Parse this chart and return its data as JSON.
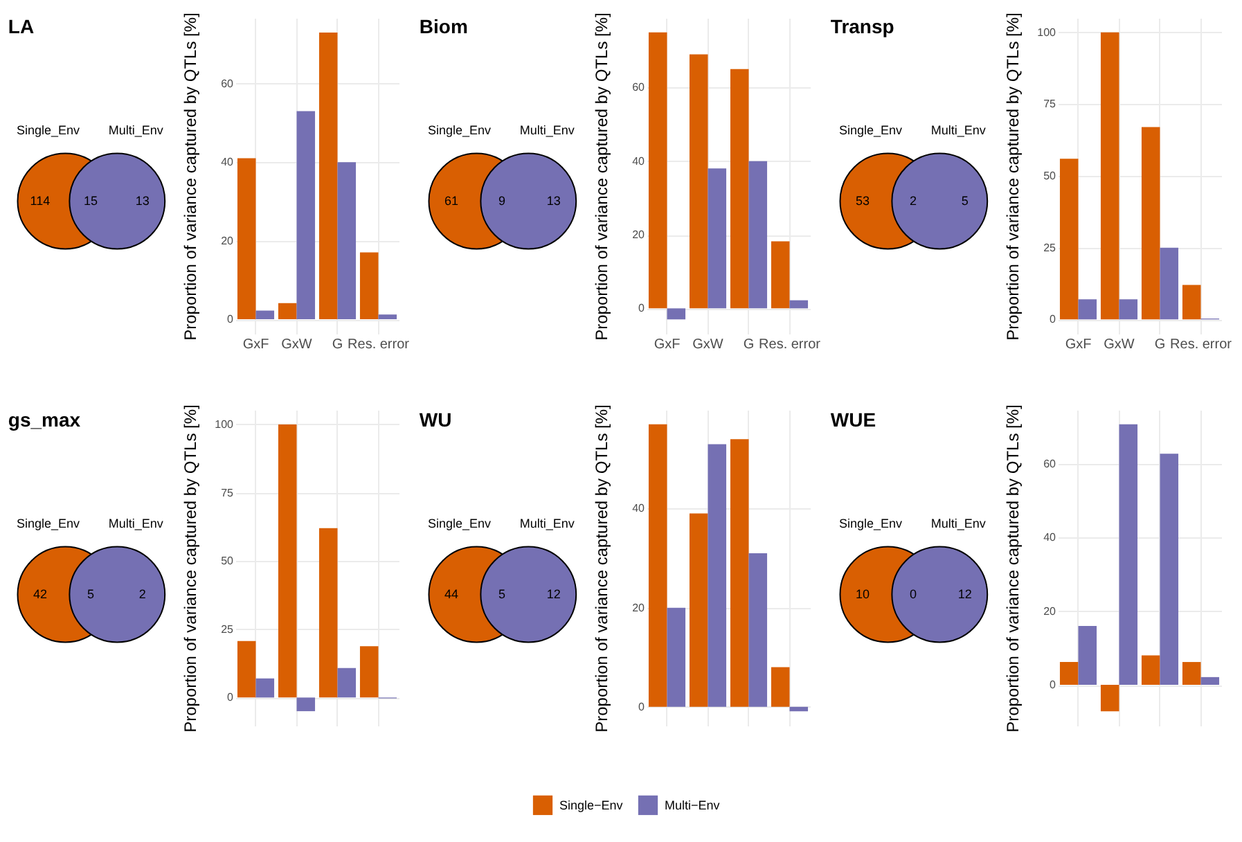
{
  "chart_data": [
    {
      "type": "other",
      "title": "LA",
      "categories": [
        "Single_Env",
        "Multi_Env"
      ],
      "colors": [
        "#d95f02",
        "#7570b3"
      ],
      "annotations": [
        "114",
        "15",
        "13"
      ]
    },
    {
      "type": "bar",
      "categories": [
        "GxF",
        "GxW",
        "G",
        "Res. error"
      ],
      "ylabel": "Proportion of variance captured by QTLs [%]",
      "ylim": [
        -3.7,
        76.7
      ],
      "yticks": [
        0,
        20,
        40,
        60
      ],
      "grid": true,
      "legend": "bottom",
      "series": [
        {
          "name": "Single−Env",
          "color": "#d95f02",
          "values": [
            41,
            4.1,
            73,
            17
          ]
        },
        {
          "name": "Multi−Env",
          "color": "#7570b3",
          "values": [
            2.2,
            53,
            40,
            1.2
          ]
        }
      ]
    },
    {
      "type": "other",
      "title": "Biom",
      "categories": [
        "Single_Env",
        "Multi_Env"
      ],
      "colors": [
        "#d95f02",
        "#7570b3"
      ],
      "annotations": [
        "61",
        "9",
        "13"
      ]
    },
    {
      "type": "bar",
      "categories": [
        "GxF",
        "GxW",
        "G",
        "Res. error"
      ],
      "ylabel": "Proportion of variance captured by QTLs [%]",
      "ylim": [
        -6.9,
        78.9
      ],
      "yticks": [
        0,
        20,
        40,
        60
      ],
      "grid": true,
      "legend": "bottom",
      "series": [
        {
          "name": "Single−Env",
          "color": "#d95f02",
          "values": [
            75,
            69,
            65,
            18.2
          ]
        },
        {
          "name": "Multi−Env",
          "color": "#7570b3",
          "values": [
            -3,
            38,
            40,
            2.2
          ]
        }
      ]
    },
    {
      "type": "other",
      "title": "Transp",
      "categories": [
        "Single_Env",
        "Multi_Env"
      ],
      "colors": [
        "#d95f02",
        "#7570b3"
      ],
      "annotations": [
        "53",
        "2",
        "5"
      ]
    },
    {
      "type": "bar",
      "categories": [
        "GxF",
        "GxW",
        "G",
        "Res. error"
      ],
      "ylabel": "Proportion of variance captured by QTLs [%]",
      "ylim": [
        -5,
        105
      ],
      "yticks": [
        0,
        25,
        50,
        75,
        100
      ],
      "grid": true,
      "legend": "bottom",
      "series": [
        {
          "name": "Single−Env",
          "color": "#d95f02",
          "values": [
            56,
            100,
            67,
            12
          ]
        },
        {
          "name": "Multi−Env",
          "color": "#7570b3",
          "values": [
            7,
            7,
            25,
            0.3
          ]
        }
      ]
    },
    {
      "type": "other",
      "title": "gs_max",
      "categories": [
        "Single_Env",
        "Multi_Env"
      ],
      "colors": [
        "#d95f02",
        "#7570b3"
      ],
      "annotations": [
        "42",
        "5",
        "2"
      ]
    },
    {
      "type": "bar",
      "categories": [
        "GxF",
        "GxW",
        "G",
        "Res. error"
      ],
      "ylabel": "Proportion of variance captured by QTLs [%]",
      "ylim": [
        -10.3,
        105.3
      ],
      "yticks": [
        0,
        25,
        50,
        75,
        100
      ],
      "grid": true,
      "legend": "bottom",
      "tick_labels": "y",
      "series": [
        {
          "name": "Single−Env",
          "color": "#d95f02",
          "values": [
            20.7,
            100,
            62,
            18.8
          ]
        },
        {
          "name": "Multi−Env",
          "color": "#7570b3",
          "values": [
            7,
            -5,
            10.8,
            -0.3
          ]
        }
      ]
    },
    {
      "type": "other",
      "title": "WU",
      "categories": [
        "Single_Env",
        "Multi_Env"
      ],
      "colors": [
        "#d95f02",
        "#7570b3"
      ],
      "annotations": [
        "44",
        "5",
        "12"
      ]
    },
    {
      "type": "bar",
      "categories": [
        "GxF",
        "GxW",
        "G",
        "Res. error"
      ],
      "ylabel": "Proportion of variance captured by QTLs [%]",
      "ylim": [
        -3.8,
        59.9
      ],
      "yticks": [
        0,
        20,
        40
      ],
      "grid": true,
      "legend": "bottom",
      "tick_labels": "y",
      "series": [
        {
          "name": "Single−Env",
          "color": "#d95f02",
          "values": [
            57,
            39,
            54,
            8
          ]
        },
        {
          "name": "Multi−Env",
          "color": "#7570b3",
          "values": [
            20,
            53,
            31,
            -0.9
          ]
        }
      ]
    },
    {
      "type": "other",
      "title": "WUE",
      "categories": [
        "Single_Env",
        "Multi_Env"
      ],
      "colors": [
        "#d95f02",
        "#7570b3"
      ],
      "annotations": [
        "10",
        "0",
        "12"
      ]
    },
    {
      "type": "bar",
      "categories": [
        "GxF",
        "GxW",
        "G",
        "Res. error"
      ],
      "ylabel": "Proportion of variance captured by QTLs [%]",
      "ylim": [
        -11.1,
        74.7
      ],
      "yticks": [
        0,
        20,
        40,
        60
      ],
      "grid": true,
      "legend": "bottom",
      "tick_labels": "y",
      "series": [
        {
          "name": "Single−Env",
          "color": "#d95f02",
          "values": [
            6.2,
            -7.2,
            8,
            6.2
          ]
        },
        {
          "name": "Multi−Env",
          "color": "#7570b3",
          "values": [
            16,
            70.8,
            62.8,
            2.1
          ]
        }
      ]
    }
  ]
}
